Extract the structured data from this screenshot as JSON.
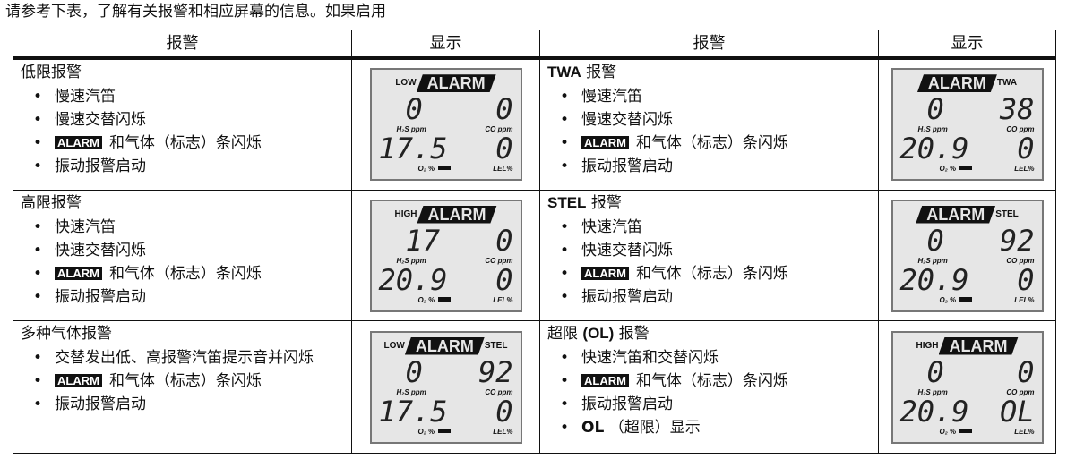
{
  "intro": "请参考下表，了解有关报警和相应屏幕的信息。如果启用",
  "headers": [
    "报警",
    "显示",
    "报警",
    "显示"
  ],
  "labels": {
    "alarm": "ALARM",
    "h2s": "H₂S ppm",
    "co": "CO ppm",
    "o2": "O₂ %",
    "lel": "LEL%"
  },
  "rows": [
    [
      {
        "title": "低限报警",
        "items": [
          {
            "text": "慢速汽笛"
          },
          {
            "text": "慢速交替闪烁"
          },
          {
            "badge": true,
            "text": "和气体（标志）条闪烁"
          },
          {
            "text": "振动报警启动"
          }
        ],
        "lcd": {
          "prefix": "LOW",
          "suffix": "",
          "h2s": "0",
          "co": "0",
          "o2": "17.5",
          "lel": "0"
        }
      },
      {
        "title_bold": "TWA",
        "title": " 报警",
        "items": [
          {
            "text": "慢速汽笛"
          },
          {
            "text": "慢速交替闪烁"
          },
          {
            "badge": true,
            "text": "和气体（标志）条闪烁"
          },
          {
            "text": "振动报警启动"
          }
        ],
        "lcd": {
          "prefix": "",
          "suffix": "TWA",
          "h2s": "0",
          "co": "38",
          "o2": "20.9",
          "lel": "0"
        }
      }
    ],
    [
      {
        "title": "高限报警",
        "items": [
          {
            "text": "快速汽笛"
          },
          {
            "text": "快速交替闪烁"
          },
          {
            "badge": true,
            "text": "和气体（标志）条闪烁"
          },
          {
            "text": "振动报警启动"
          }
        ],
        "lcd": {
          "prefix": "HIGH",
          "suffix": "",
          "h2s": "17",
          "co": "0",
          "o2": "20.9",
          "lel": "0"
        }
      },
      {
        "title_bold": "STEL",
        "title": " 报警",
        "items": [
          {
            "text": "快速汽笛"
          },
          {
            "text": "快速交替闪烁"
          },
          {
            "badge": true,
            "text": "和气体（标志）条闪烁"
          },
          {
            "text": "振动报警启动"
          }
        ],
        "lcd": {
          "prefix": "",
          "suffix": "STEL",
          "h2s": "0",
          "co": "92",
          "o2": "20.9",
          "lel": "0"
        }
      }
    ],
    [
      {
        "title": "多种气体报警",
        "items": [
          {
            "text": "交替发出低、高报警汽笛提示音并闪烁"
          },
          {
            "badge": true,
            "text": "和气体（标志）条闪烁"
          },
          {
            "text": "振动报警启动"
          }
        ],
        "lcd": {
          "prefix": "LOW",
          "suffix": "STEL",
          "h2s": "0",
          "co": "92",
          "o2": "17.5",
          "lel": "0"
        }
      },
      {
        "title": "超限 ",
        "title_bold": "(OL)",
        "title2": " 报警",
        "items": [
          {
            "text": "快速汽笛和交替闪烁"
          },
          {
            "badge": true,
            "text": "和气体（标志）条闪烁"
          },
          {
            "text": "振动报警启动"
          },
          {
            "bold": "OL",
            "text": " （超限）显示"
          }
        ],
        "lcd": {
          "prefix": "HIGH",
          "suffix": "",
          "h2s": "0",
          "co": "0",
          "o2": "20.9",
          "lel": "OL"
        }
      }
    ]
  ]
}
